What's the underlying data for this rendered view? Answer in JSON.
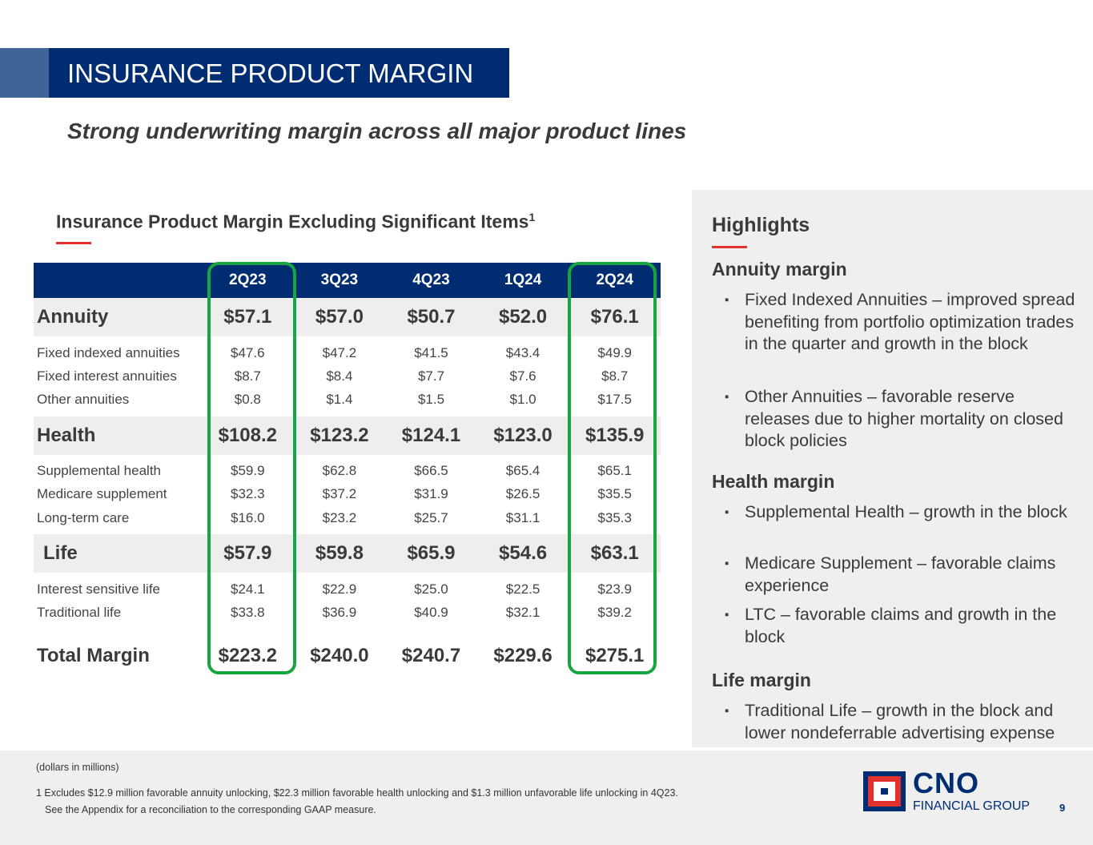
{
  "title": "INSURANCE PRODUCT MARGIN",
  "subtitle": "Strong underwriting margin across all major product lines",
  "table_title": "Insurance Product Margin Excluding Significant Items",
  "table_title_sup": "1",
  "columns": [
    "2Q23",
    "3Q23",
    "4Q23",
    "1Q24",
    "2Q24"
  ],
  "groups": [
    {
      "label": "Annuity",
      "values": [
        "$57.1",
        "$57.0",
        "$50.7",
        "$52.0",
        "$76.1"
      ],
      "rows": [
        {
          "label": "Fixed indexed annuities",
          "values": [
            "$47.6",
            "$47.2",
            "$41.5",
            "$43.4",
            "$49.9"
          ]
        },
        {
          "label": "Fixed interest annuities",
          "values": [
            "$8.7",
            "$8.4",
            "$7.7",
            "$7.6",
            "$8.7"
          ]
        },
        {
          "label": "Other annuities",
          "values": [
            "$0.8",
            "$1.4",
            "$1.5",
            "$1.0",
            "$17.5"
          ]
        }
      ]
    },
    {
      "label": "Health",
      "values": [
        "$108.2",
        "$123.2",
        "$124.1",
        "$123.0",
        "$135.9"
      ],
      "rows": [
        {
          "label": "Supplemental health",
          "values": [
            "$59.9",
            "$62.8",
            "$66.5",
            "$65.4",
            "$65.1"
          ]
        },
        {
          "label": "Medicare supplement",
          "values": [
            "$32.3",
            "$37.2",
            "$31.9",
            "$26.5",
            "$35.5"
          ]
        },
        {
          "label": "Long-term care",
          "values": [
            "$16.0",
            "$23.2",
            "$25.7",
            "$31.1",
            "$35.3"
          ]
        }
      ]
    },
    {
      "label": "Life",
      "values": [
        "$57.9",
        "$59.8",
        "$65.9",
        "$54.6",
        "$63.1"
      ],
      "rows": [
        {
          "label": "Interest sensitive life",
          "values": [
            "$24.1",
            "$22.9",
            "$25.0",
            "$22.5",
            "$23.9"
          ]
        },
        {
          "label": "Traditional life",
          "values": [
            "$33.8",
            "$36.9",
            "$40.9",
            "$32.1",
            "$39.2"
          ]
        }
      ]
    }
  ],
  "total": {
    "label": "Total Margin",
    "values": [
      "$223.2",
      "$240.0",
      "$240.7",
      "$229.6",
      "$275.1"
    ]
  },
  "highlights": {
    "title": "Highlights",
    "sections": [
      {
        "title": "Annuity margin",
        "bullets": [
          "Fixed Indexed Annuities – improved spread benefiting from portfolio optimization trades in the quarter and growth in the block",
          "Other Annuities – favorable reserve releases due to higher mortality on closed block policies"
        ]
      },
      {
        "title": "Health margin",
        "bullets": [
          "Supplemental Health – growth in the block",
          "Medicare Supplement – favorable claims experience",
          "LTC – favorable claims and growth in the block"
        ]
      },
      {
        "title": "Life margin",
        "bullets": [
          "Traditional Life – growth in the block and lower nondeferrable advertising expense"
        ]
      }
    ]
  },
  "footer": {
    "units": "(dollars in millions)",
    "footnote1": "1 Excludes $12.9 million favorable annuity unlocking, $22.3 million favorable health unlocking and $1.3 million unfavorable life unlocking in 4Q23.",
    "footnote2": "See the Appendix for a reconciliation to the corresponding GAAP measure.",
    "page": "9"
  },
  "logo": {
    "name": "CNO",
    "tagline": "FINANCIAL GROUP"
  },
  "colors": {
    "navy": "#002d72",
    "red": "#e0312c",
    "green": "#16a53f"
  }
}
